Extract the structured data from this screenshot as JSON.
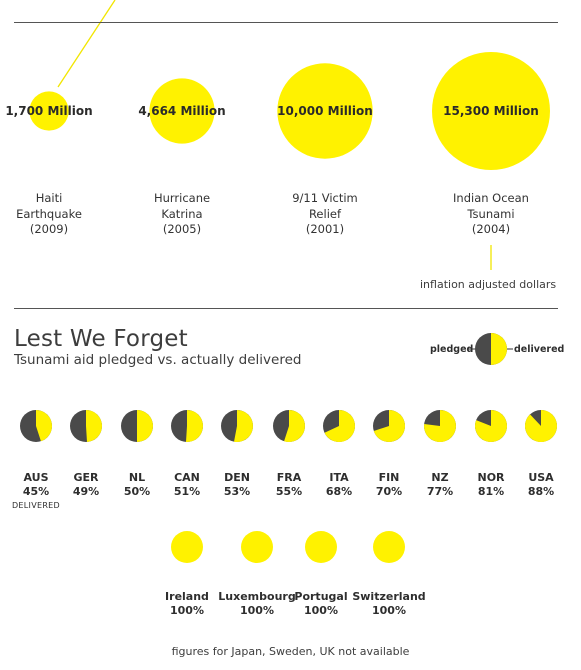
{
  "chart_data": [
    {
      "type": "bubble",
      "unit_note": "inflation adjusted dollars",
      "items": [
        {
          "label_lines": [
            "Haiti",
            "Earthquake",
            "(2009)"
          ],
          "value": 1700,
          "value_label": "1,700 Million"
        },
        {
          "label_lines": [
            "Hurricane",
            "Katrina",
            "(2005)"
          ],
          "value": 4664,
          "value_label": "4,664 Million"
        },
        {
          "label_lines": [
            "9/11 Victim",
            "Relief",
            "(2001)"
          ],
          "value": 10000,
          "value_label": "10,000 Million"
        },
        {
          "label_lines": [
            "Indian Ocean",
            "Tsunami",
            "(2004)"
          ],
          "value": 15300,
          "value_label": "15,300 Million"
        }
      ]
    },
    {
      "type": "pie",
      "title": "Lest We Forget",
      "subtitle": "Tsunami aid pledged vs. actually delivered",
      "legend": {
        "pledged": "pledged",
        "delivered": "delivered"
      },
      "colors": {
        "pledged": "#4a4a4a",
        "delivered": "#fff200",
        "line": "#f2e600"
      },
      "countries": [
        {
          "code": "AUS",
          "pct": 45,
          "pct_label": "45%",
          "sub": "DELIVERED"
        },
        {
          "code": "GER",
          "pct": 49,
          "pct_label": "49%"
        },
        {
          "code": "NL",
          "pct": 50,
          "pct_label": "50%"
        },
        {
          "code": "CAN",
          "pct": 51,
          "pct_label": "51%"
        },
        {
          "code": "DEN",
          "pct": 53,
          "pct_label": "53%"
        },
        {
          "code": "FRA",
          "pct": 55,
          "pct_label": "55%"
        },
        {
          "code": "ITA",
          "pct": 68,
          "pct_label": "68%"
        },
        {
          "code": "FIN",
          "pct": 70,
          "pct_label": "70%"
        },
        {
          "code": "NZ",
          "pct": 77,
          "pct_label": "77%"
        },
        {
          "code": "NOR",
          "pct": 81,
          "pct_label": "81%"
        },
        {
          "code": "USA",
          "pct": 88,
          "pct_label": "88%"
        }
      ],
      "full_countries": [
        {
          "code": "Ireland",
          "pct": 100,
          "pct_label": "100%"
        },
        {
          "code": "Luxembourg",
          "pct": 100,
          "pct_label": "100%"
        },
        {
          "code": "Portugal",
          "pct": 100,
          "pct_label": "100%"
        },
        {
          "code": "Switzerland",
          "pct": 100,
          "pct_label": "100%"
        }
      ],
      "footnote": "figures for Japan, Sweden, UK not available"
    }
  ]
}
